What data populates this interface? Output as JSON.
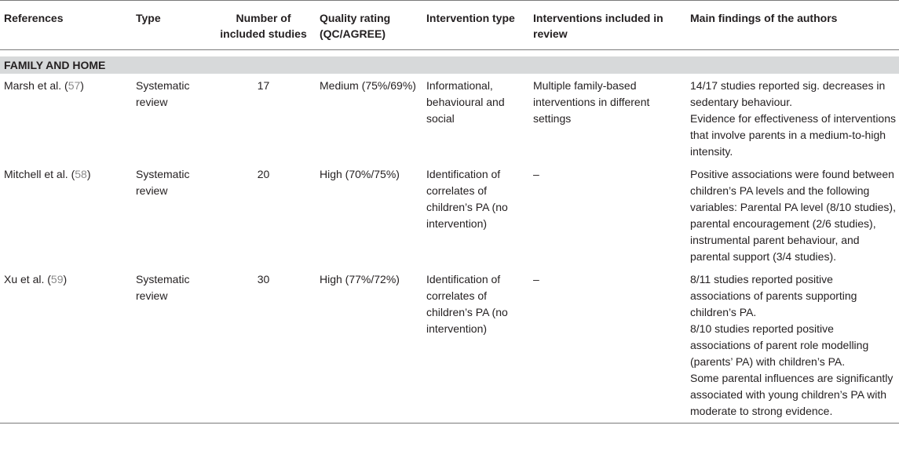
{
  "headers": [
    "References",
    "Type",
    "Number of included studies",
    "Quality rating (QC/AGREE)",
    "Intervention type",
    "Interventions included in review",
    "Main findings of the authors"
  ],
  "section": "FAMILY AND HOME",
  "rows": [
    {
      "ref_name": "Marsh et al. (",
      "ref_num": "57",
      "ref_close": ")",
      "type": "Systematic review",
      "n": "17",
      "quality": "Medium (75%/69%)",
      "intervention_type": "Informational, behavioural and social",
      "interventions": "Multiple family-based interventions in different settings",
      "findings": [
        "14/17 studies reported sig. decreases in sedentary behaviour.",
        "Evidence for effectiveness of interventions that involve parents in a medium-to-high intensity."
      ]
    },
    {
      "ref_name": "Mitchell et al. (",
      "ref_num": "58",
      "ref_close": ")",
      "type": "Systematic review",
      "n": "20",
      "quality": "High (70%/75%)",
      "intervention_type": "Identification of correlates of children’s PA (no intervention)",
      "interventions": "–",
      "findings": [
        "Positive associations were found between children’s PA levels and the following variables: Parental PA level (8/10 studies), parental encouragement (2/6 studies), instrumental parent behaviour, and parental support (3/4 studies)."
      ]
    },
    {
      "ref_name": "Xu et al. (",
      "ref_num": "59",
      "ref_close": ")",
      "type": "Systematic review",
      "n": "30",
      "quality": "High (77%/72%)",
      "intervention_type": "Identification of correlates of children’s PA (no intervention)",
      "interventions": "–",
      "findings": [
        "8/11 studies reported positive associations of parents supporting children’s PA.",
        "8/10 studies reported positive associations of parent role modelling (parents’ PA) with children’s PA.",
        "Some parental influences are significantly associated with young children’s PA with moderate to strong evidence."
      ]
    }
  ]
}
